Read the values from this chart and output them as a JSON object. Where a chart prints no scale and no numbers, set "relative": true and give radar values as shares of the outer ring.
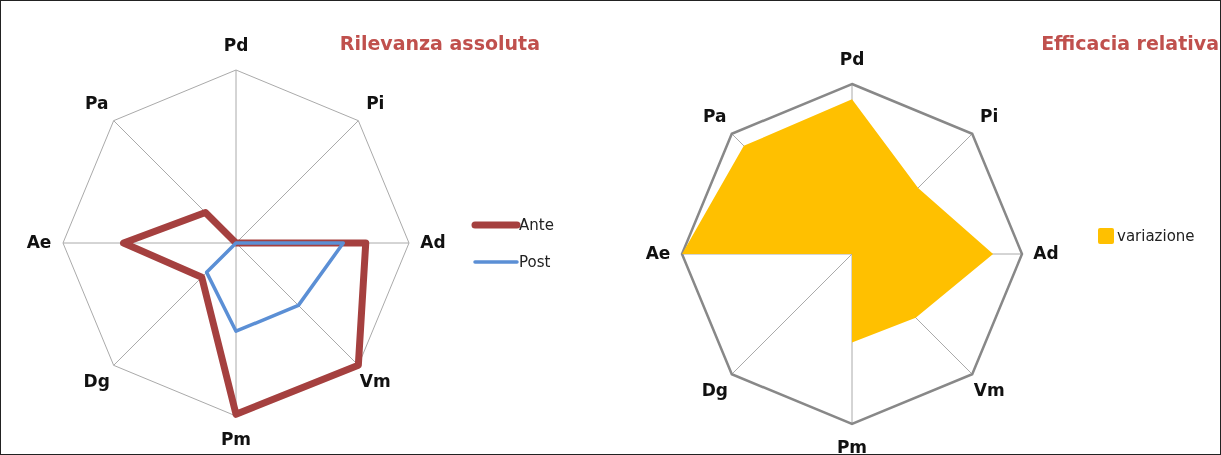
{
  "chart_data": [
    {
      "type": "radar",
      "title": "Rilevanza assoluta",
      "categories": [
        "Pd",
        "Pi",
        "Ad",
        "Vm",
        "Pm",
        "Dg",
        "Ae",
        "Pa"
      ],
      "relative": true,
      "grid": true,
      "legend": "right",
      "series": [
        {
          "name": "Ante",
          "color": "#a5403f",
          "values": [
            0,
            0,
            0.75,
            1,
            0.99,
            0.28,
            0.65,
            0.25
          ]
        },
        {
          "name": "Post",
          "color": "#5b8fd5",
          "values": [
            0,
            0,
            0.62,
            0.51,
            0.51,
            0.24,
            0,
            0
          ]
        }
      ]
    },
    {
      "type": "radar",
      "title": "Efficacia relativa",
      "categories": [
        "Pd",
        "Pi",
        "Ad",
        "Vm",
        "Pm",
        "Dg",
        "Ae",
        "Pa"
      ],
      "relative": true,
      "grid": true,
      "legend": "right",
      "series": [
        {
          "name": "variazione",
          "type": "area",
          "color": "#ffc000",
          "values": [
            0.91,
            0.55,
            0.83,
            0.53,
            0.52,
            0,
            1,
            0.9
          ]
        }
      ]
    }
  ]
}
